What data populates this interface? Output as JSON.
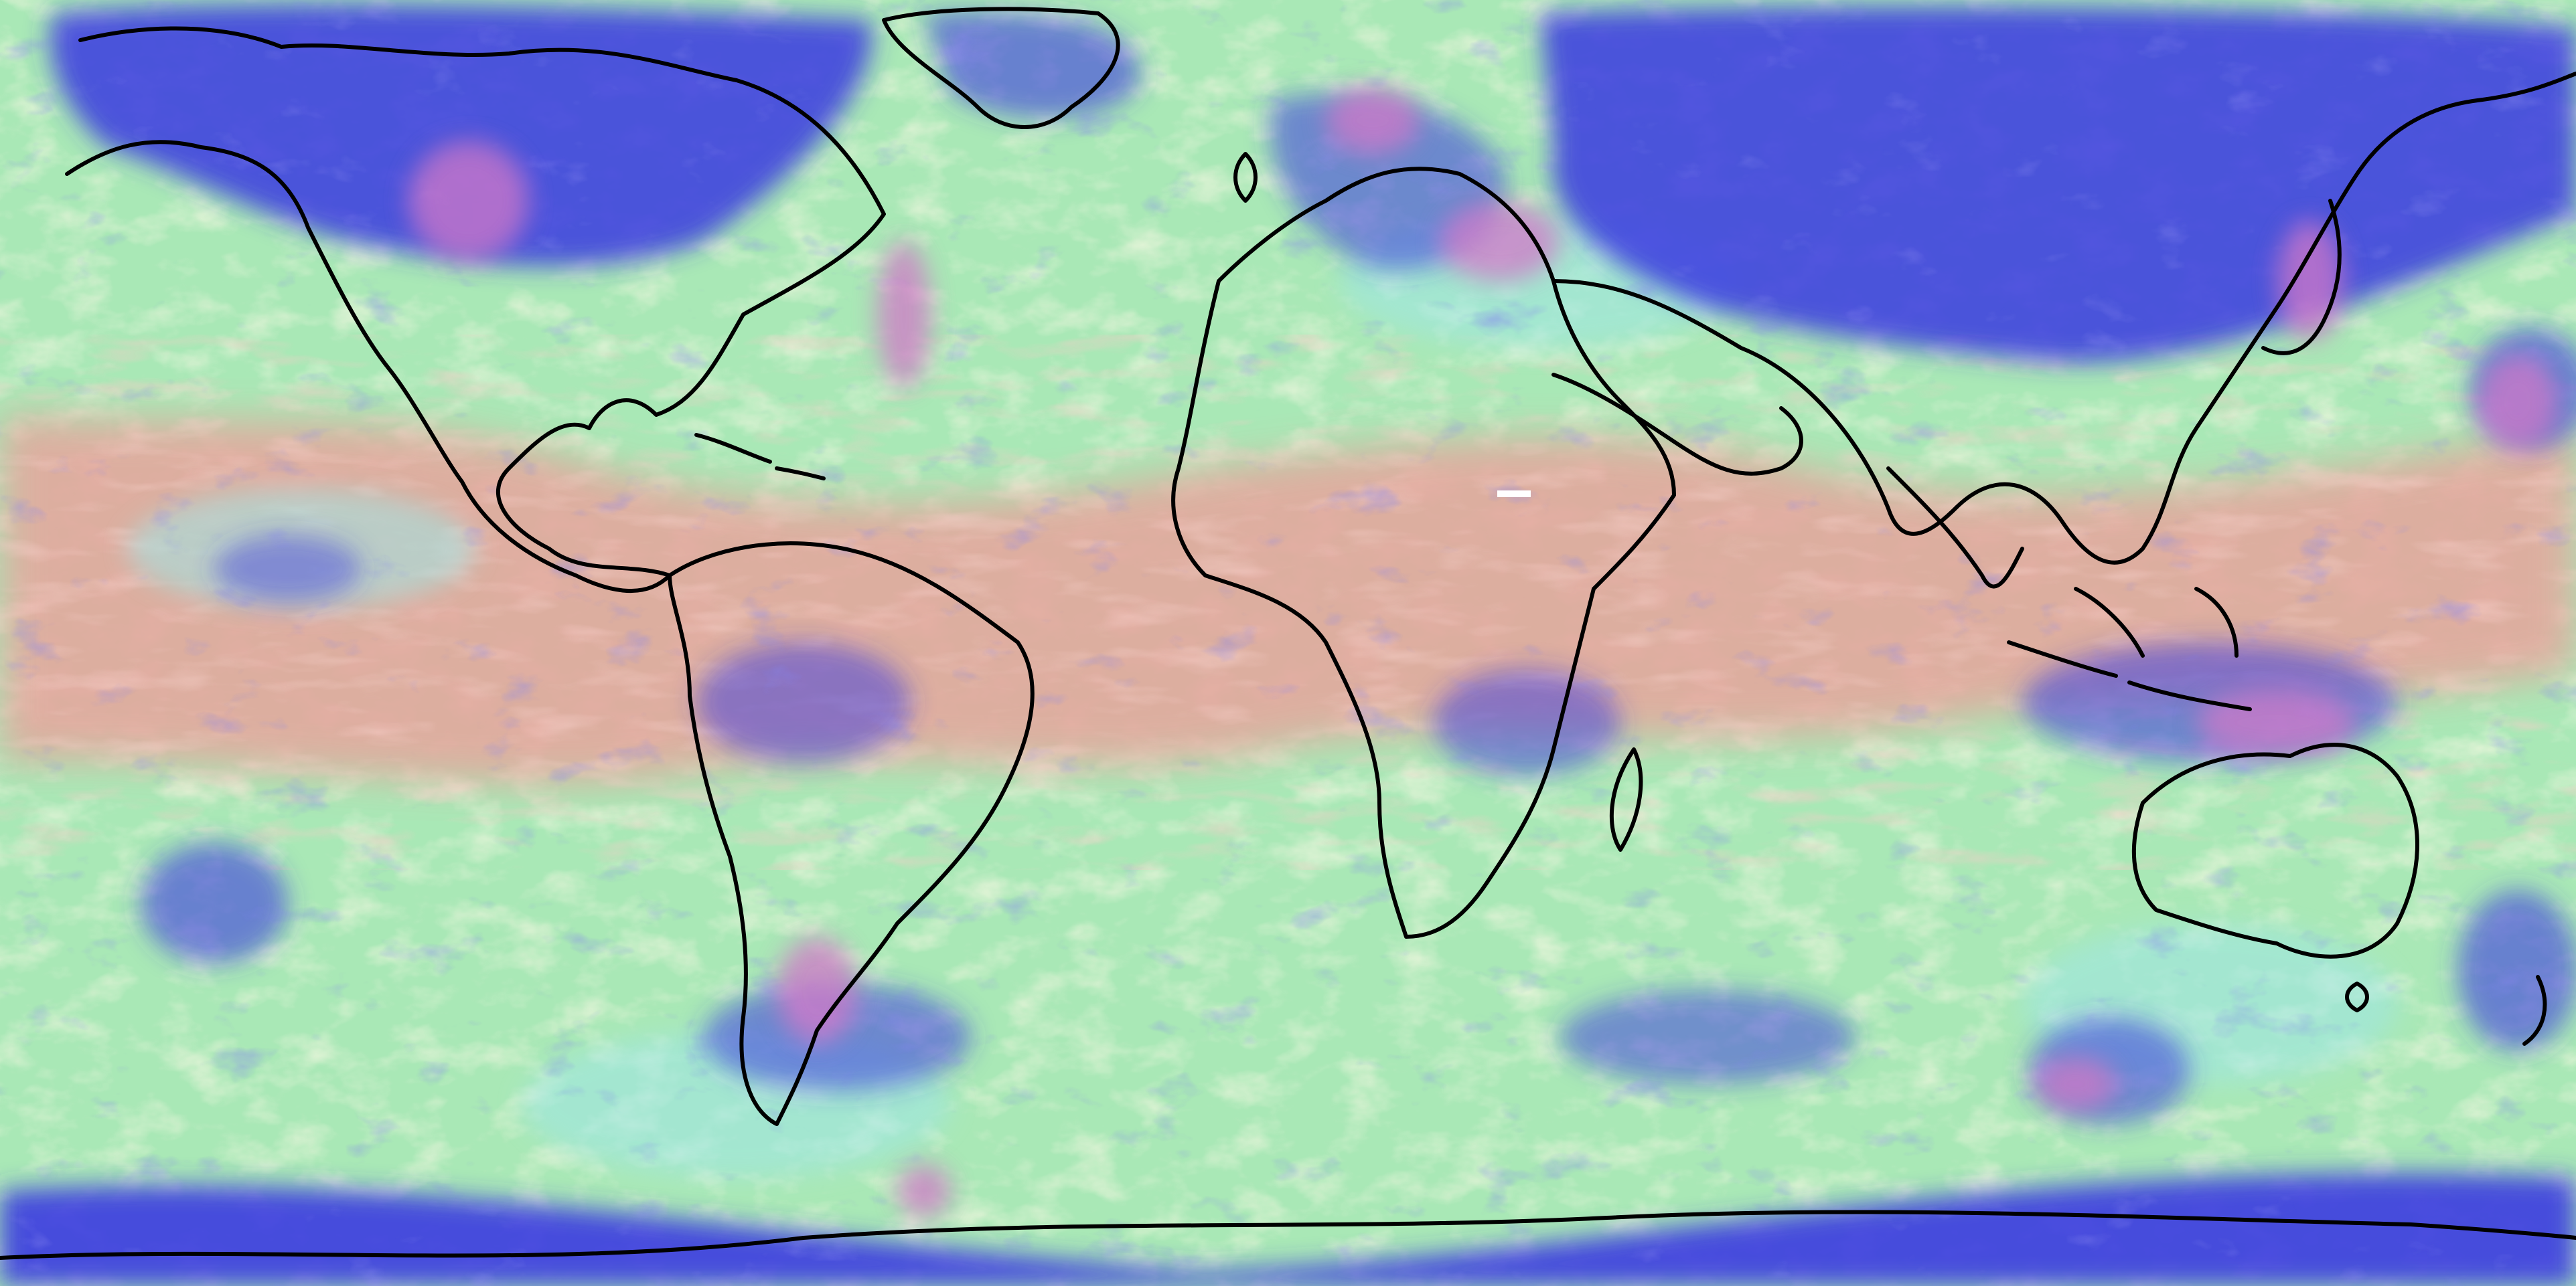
{
  "map": {
    "projection": "equirectangular",
    "extent_degrees": {
      "lon": [
        -180,
        180
      ],
      "lat": [
        -90,
        90
      ]
    },
    "colors": {
      "clear_sky": "#a9e8b6",
      "warm_tint": "#f4efc6",
      "pink_band": "#e6a49c",
      "cyan_haze": "#9fe6e6",
      "cold_cloud_blue": "#3a3ae0",
      "deep_cloud_navy": "#1c1c8c",
      "magenta_core": "#d078c8",
      "coastline": "#000000"
    },
    "coastline_visible": true
  }
}
